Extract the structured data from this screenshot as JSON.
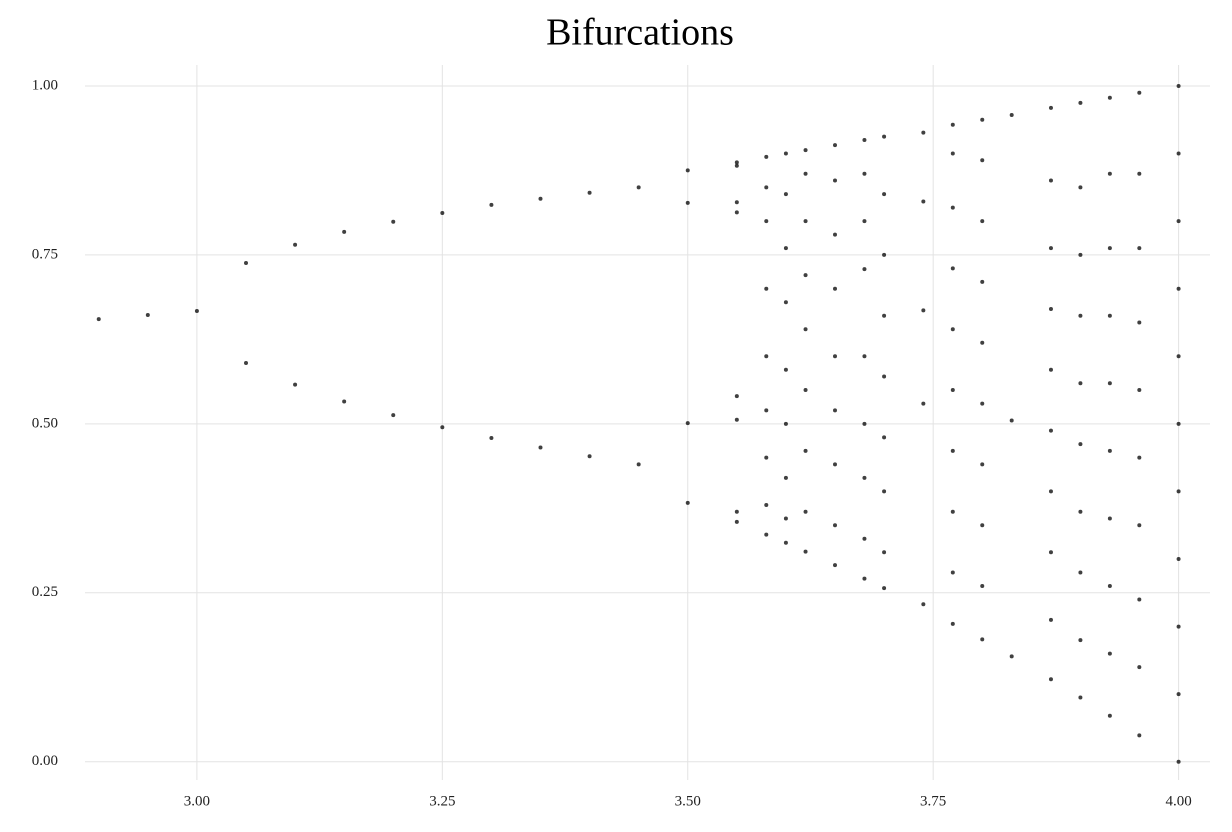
{
  "chart_data": {
    "type": "scatter",
    "title": "Bifurcations",
    "color": "#000000",
    "grid": true,
    "x": [
      2.9,
      2.95,
      3.0,
      3.05,
      3.05,
      3.1,
      3.1,
      3.15,
      3.15,
      3.2,
      3.2,
      3.25,
      3.25,
      3.3,
      3.3,
      3.35,
      3.35,
      3.4,
      3.4,
      3.45,
      3.45,
      3.5,
      3.5,
      3.5,
      3.5,
      3.55,
      3.55,
      3.55,
      3.55,
      3.55,
      3.55,
      3.55,
      3.55,
      3.58,
      3.58,
      3.58,
      3.58,
      3.58,
      3.58,
      3.58,
      3.58,
      3.58,
      3.6,
      3.6,
      3.6,
      3.6,
      3.6,
      3.6,
      3.6,
      3.6,
      3.6,
      3.62,
      3.62,
      3.62,
      3.62,
      3.62,
      3.62,
      3.62,
      3.62,
      3.62,
      3.65,
      3.65,
      3.65,
      3.65,
      3.65,
      3.65,
      3.65,
      3.65,
      3.65,
      3.68,
      3.68,
      3.68,
      3.68,
      3.68,
      3.68,
      3.68,
      3.68,
      3.68,
      3.7,
      3.7,
      3.7,
      3.7,
      3.7,
      3.7,
      3.7,
      3.7,
      3.7,
      3.74,
      3.74,
      3.74,
      3.74,
      3.74,
      3.77,
      3.77,
      3.77,
      3.77,
      3.77,
      3.77,
      3.77,
      3.77,
      3.77,
      3.77,
      3.8,
      3.8,
      3.8,
      3.8,
      3.8,
      3.8,
      3.8,
      3.8,
      3.8,
      3.8,
      3.83,
      3.83,
      3.83,
      3.87,
      3.87,
      3.87,
      3.87,
      3.87,
      3.87,
      3.87,
      3.87,
      3.87,
      3.87,
      3.9,
      3.9,
      3.9,
      3.9,
      3.9,
      3.9,
      3.9,
      3.9,
      3.9,
      3.9,
      3.93,
      3.93,
      3.93,
      3.93,
      3.93,
      3.93,
      3.93,
      3.93,
      3.93,
      3.93,
      3.96,
      3.96,
      3.96,
      3.96,
      3.96,
      3.96,
      3.96,
      3.96,
      3.96,
      3.96,
      4.0,
      4.0,
      4.0,
      4.0,
      4.0,
      4.0,
      4.0,
      4.0,
      4.0,
      4.0,
      4.0
    ],
    "values": [
      0.655,
      0.661,
      0.667,
      0.738,
      0.59,
      0.765,
      0.558,
      0.784,
      0.533,
      0.799,
      0.513,
      0.812,
      0.495,
      0.824,
      0.479,
      0.833,
      0.465,
      0.842,
      0.452,
      0.85,
      0.44,
      0.875,
      0.383,
      0.827,
      0.501,
      0.887,
      0.355,
      0.813,
      0.541,
      0.882,
      0.37,
      0.828,
      0.506,
      0.336,
      0.38,
      0.45,
      0.52,
      0.6,
      0.7,
      0.8,
      0.85,
      0.895,
      0.324,
      0.36,
      0.42,
      0.5,
      0.58,
      0.68,
      0.76,
      0.84,
      0.9,
      0.311,
      0.37,
      0.46,
      0.55,
      0.64,
      0.72,
      0.8,
      0.87,
      0.905,
      0.291,
      0.35,
      0.44,
      0.52,
      0.6,
      0.7,
      0.78,
      0.86,
      0.9125,
      0.271,
      0.33,
      0.42,
      0.5,
      0.6,
      0.729,
      0.8,
      0.87,
      0.92,
      0.257,
      0.31,
      0.4,
      0.48,
      0.57,
      0.66,
      0.75,
      0.84,
      0.925,
      0.233,
      0.53,
      0.668,
      0.829,
      0.931,
      0.204,
      0.28,
      0.37,
      0.46,
      0.55,
      0.64,
      0.73,
      0.82,
      0.9,
      0.9425,
      0.181,
      0.26,
      0.35,
      0.44,
      0.53,
      0.62,
      0.71,
      0.8,
      0.89,
      0.95,
      0.156,
      0.505,
      0.957,
      0.122,
      0.21,
      0.31,
      0.4,
      0.49,
      0.58,
      0.67,
      0.76,
      0.86,
      0.9675,
      0.095,
      0.18,
      0.28,
      0.37,
      0.47,
      0.56,
      0.66,
      0.75,
      0.85,
      0.975,
      0.068,
      0.16,
      0.26,
      0.36,
      0.46,
      0.56,
      0.66,
      0.76,
      0.87,
      0.9825,
      0.039,
      0.14,
      0.24,
      0.35,
      0.45,
      0.55,
      0.65,
      0.76,
      0.87,
      0.99,
      0,
      0.1,
      0.2,
      0.3,
      0.4,
      0.5,
      0.6,
      0.7,
      0.8,
      0.9,
      1.0
    ],
    "xlim": [
      2.886,
      4.032
    ],
    "ylim": [
      -0.027,
      1.031
    ],
    "xticks": [
      {
        "value": 3,
        "label": "3.00"
      },
      {
        "value": 3.25,
        "label": "3.25"
      },
      {
        "value": 3.5,
        "label": "3.50"
      },
      {
        "value": 3.75,
        "label": "3.75"
      },
      {
        "value": 4,
        "label": "4.00"
      }
    ],
    "yticks": [
      {
        "value": 0,
        "label": "0.00"
      },
      {
        "value": 0.25,
        "label": "0.25"
      },
      {
        "value": 0.5,
        "label": "0.50"
      },
      {
        "value": 0.75,
        "label": "0.75"
      },
      {
        "value": 1,
        "label": "1.00"
      }
    ]
  }
}
